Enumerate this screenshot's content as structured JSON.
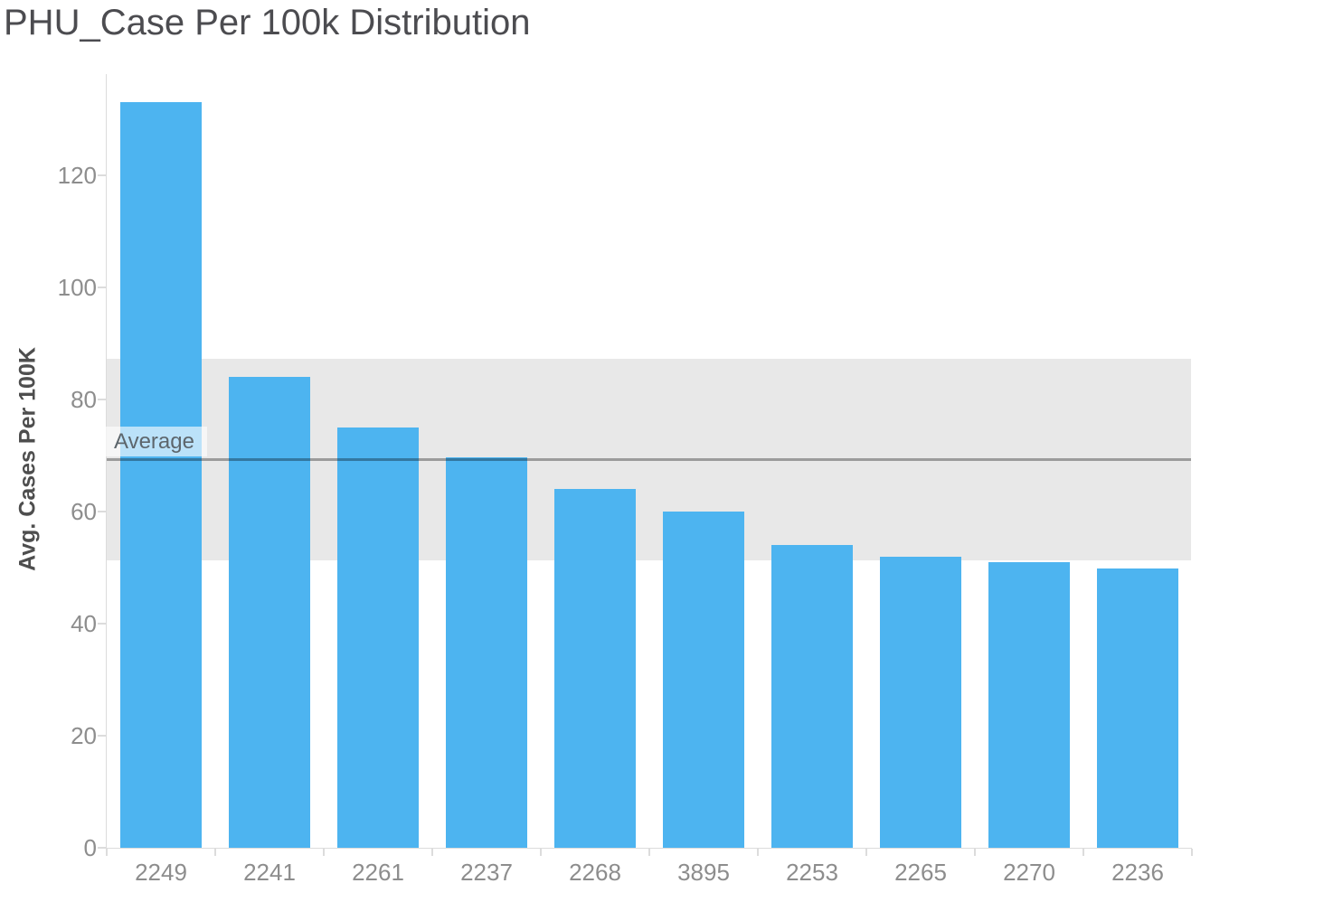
{
  "title": "PHU_Case Per 100k Distribution",
  "chart_data": {
    "type": "bar",
    "title": "PHU_Case Per 100k Distribution",
    "categories": [
      "2249",
      "2241",
      "2261",
      "2237",
      "2268",
      "3895",
      "2253",
      "2265",
      "2270",
      "2236"
    ],
    "values": [
      133,
      84,
      75,
      69.6,
      64,
      60,
      54,
      52,
      51,
      49.8
    ],
    "xlabel": "",
    "ylabel": "Avg. Cases Per 100K",
    "ylim": [
      0,
      135
    ],
    "yticks": [
      0,
      20,
      40,
      60,
      80,
      100,
      120
    ],
    "grid": false,
    "legend": false,
    "annotations": {
      "average_line": {
        "label": "Average",
        "value": 69.2
      },
      "reference_band": {
        "from": 51.3,
        "to": 87.2
      }
    }
  },
  "colors": {
    "bar": "#4db4f0",
    "band": "#e8e8e8",
    "average_line": "rgba(0,0,0,0.33)",
    "average_label_bg": "rgba(255,255,255,0.62)",
    "average_label_text": "#5d666c",
    "axis_text": "#8d8d8d",
    "axis_line": "#dcdcdc",
    "title_text": "#4c4c50"
  }
}
